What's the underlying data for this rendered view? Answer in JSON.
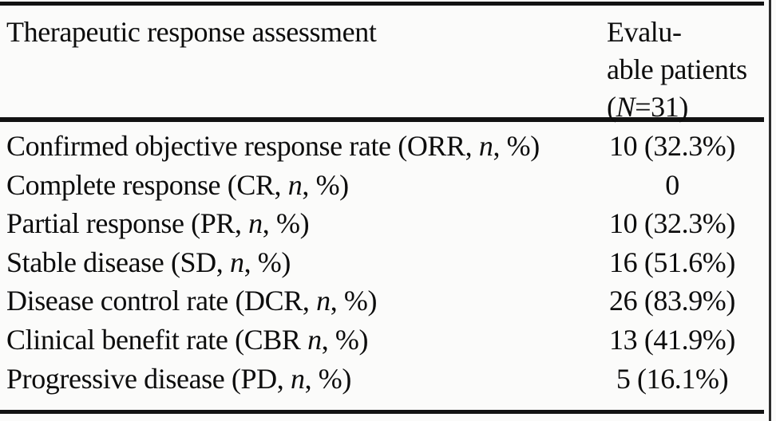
{
  "page": {
    "background_color": "#fbfbfa",
    "text_color": "#0d0d0d",
    "rule_color": "#121212"
  },
  "table": {
    "header": {
      "assessment_label": "Therapeutic response assessment",
      "patients_line1": "Evalu-",
      "patients_line2": "able patients",
      "patients_n_pre": "(",
      "patients_n_italic": "N",
      "patients_n_post": "=31)"
    },
    "rows": [
      {
        "label_pre": "Confirmed objective response rate (ORR, ",
        "label_n": "n",
        "label_post": ", %)",
        "value": "10 (32.3%)"
      },
      {
        "label_pre": "Complete response (CR, ",
        "label_n": "n",
        "label_post": ", %)",
        "value": "0"
      },
      {
        "label_pre": "Partial response (PR, ",
        "label_n": "n",
        "label_post": ", %)",
        "value": "10 (32.3%)"
      },
      {
        "label_pre": "Stable disease (SD, ",
        "label_n": "n",
        "label_post": ", %)",
        "value": "16 (51.6%)"
      },
      {
        "label_pre": "Disease control rate (DCR, ",
        "label_n": "n",
        "label_post": ", %)",
        "value": "26 (83.9%)"
      },
      {
        "label_pre": "Clinical benefit rate (CBR ",
        "label_n": "n",
        "label_post": ", %)",
        "value": "13 (41.9%)"
      },
      {
        "label_pre": "Progressive disease (PD, ",
        "label_n": "n",
        "label_post": ", %)",
        "value": "5 (16.1%)"
      }
    ]
  }
}
